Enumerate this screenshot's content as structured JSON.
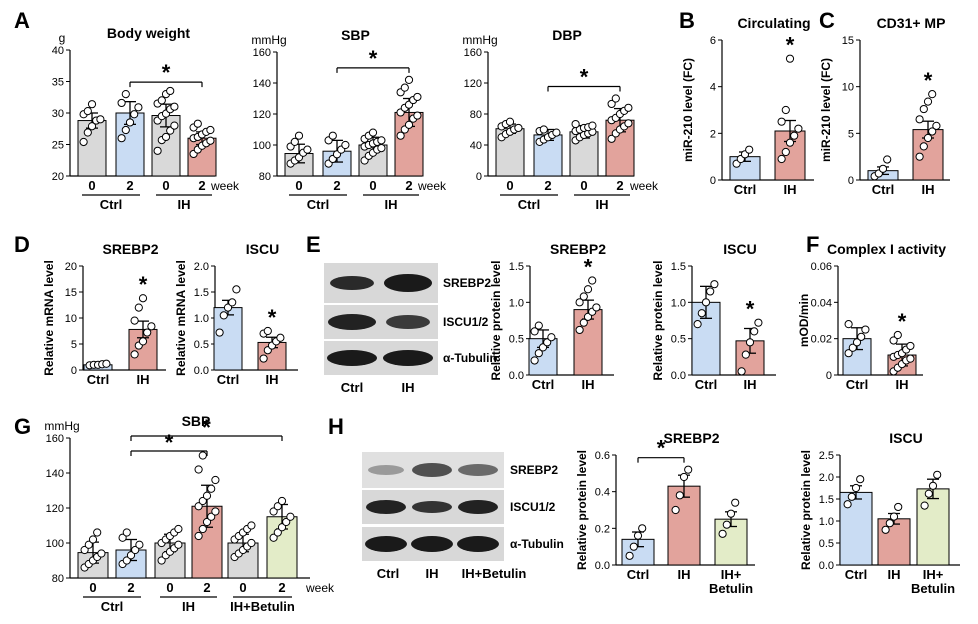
{
  "colors": {
    "gray": "#d9d9d9",
    "blue": "#c9dcf3",
    "red": "#e2a39c",
    "green": "#e3ecc8",
    "axis": "#000000"
  },
  "panels": {
    "A": "A",
    "B": "B",
    "C": "C",
    "D": "D",
    "E": "E",
    "F": "F",
    "G": "G",
    "H": "H"
  },
  "common": {
    "week": "week",
    "zero": "0",
    "two": "2",
    "ctrl": "Ctrl",
    "ih": "IH",
    "ihb": "IH+Betulin",
    "ihb1": "IH+",
    "ihb2": "Betulin",
    "star": "*",
    "g": "g",
    "mmhg": "mmHg"
  },
  "blot_labels": {
    "srebp2": "SREBP2",
    "iscu12": "ISCU1/2",
    "tubulin": "α-Tubulin"
  },
  "chart_data": [
    {
      "id": "A1",
      "type": "bar",
      "title": "Body weight",
      "unit": "g",
      "ylim": [
        20,
        40
      ],
      "yticks": [
        "20",
        "25",
        "30",
        "35",
        "40"
      ],
      "categories": [
        "Ctrl 0",
        "Ctrl 2",
        "IH 0",
        "IH 2"
      ],
      "values": [
        28.8,
        30,
        29.6,
        26
      ],
      "errors": [
        1.2,
        1.8,
        1.8,
        1
      ],
      "colors": [
        "gray",
        "blue",
        "gray",
        "red"
      ],
      "points": [
        [
          25.4,
          26.9,
          27.9,
          28.8,
          29,
          29.8,
          30.3,
          31.4
        ],
        [
          26,
          27.3,
          28.5,
          29.8,
          30.9,
          31.6,
          33
        ],
        [
          24,
          25.7,
          26.2,
          27.2,
          28,
          28.8,
          29.5,
          29.9,
          30.6,
          31,
          31.5,
          32,
          33,
          33.5
        ],
        [
          23.5,
          24.2,
          24.8,
          25.2,
          25.6,
          26,
          26.2,
          26.6,
          27,
          27.3,
          27.7,
          28.3
        ]
      ],
      "sig": [
        1,
        3
      ],
      "xlabel_groups": [
        "Ctrl",
        "IH"
      ],
      "xticks": [
        "0",
        "2",
        "0",
        "2"
      ],
      "xunit": "week"
    },
    {
      "id": "A2",
      "type": "bar",
      "title": "SBP",
      "unit": "mmHg",
      "ylim": [
        80,
        160
      ],
      "yticks": [
        "80",
        "100",
        "120",
        "140",
        "160"
      ],
      "categories": [
        "Ctrl 0",
        "Ctrl 2",
        "IH 0",
        "IH 2"
      ],
      "values": [
        94.5,
        96,
        100,
        121
      ],
      "errors": [
        6,
        7,
        5,
        9
      ],
      "colors": [
        "gray",
        "blue",
        "gray",
        "red"
      ],
      "points": [
        [
          88,
          90,
          92,
          95,
          97,
          99,
          102,
          106
        ],
        [
          88,
          91,
          94,
          97,
          100,
          103,
          106
        ],
        [
          90,
          93,
          95,
          97,
          98,
          99,
          100,
          101,
          102,
          103,
          104,
          106,
          108
        ],
        [
          106,
          110,
          113,
          117,
          119,
          121,
          124,
          126,
          129,
          131,
          134,
          137,
          142
        ]
      ],
      "sig": [
        1,
        3
      ],
      "xlabel_groups": [
        "Ctrl",
        "IH"
      ],
      "xticks": [
        "0",
        "2",
        "0",
        "2"
      ],
      "xunit": "week"
    },
    {
      "id": "A3",
      "type": "bar",
      "title": "DBP",
      "unit": "mmHg",
      "ylim": [
        0,
        160
      ],
      "yticks": [
        "0",
        "40",
        "80",
        "120",
        "160"
      ],
      "categories": [
        "Ctrl 0",
        "Ctrl 2",
        "IH 0",
        "IH 2"
      ],
      "values": [
        61,
        53,
        57,
        72
      ],
      "errors": [
        6,
        7,
        8,
        15
      ],
      "colors": [
        "gray",
        "blue",
        "gray",
        "red"
      ],
      "points": [
        [
          50,
          54,
          57,
          60,
          62,
          64,
          67,
          70
        ],
        [
          44,
          47,
          50,
          53,
          56,
          58,
          60
        ],
        [
          46,
          50,
          53,
          55,
          57,
          58,
          60,
          62,
          63,
          65,
          67
        ],
        [
          48,
          55,
          60,
          64,
          68,
          72,
          75,
          80,
          84,
          88,
          93,
          100
        ]
      ],
      "sig": [
        1,
        3
      ],
      "xlabel_groups": [
        "Ctrl",
        "IH"
      ],
      "xticks": [
        "0",
        "2",
        "0",
        "2"
      ],
      "xunit": "week"
    },
    {
      "id": "B",
      "type": "bar",
      "title": "Circulating",
      "ylabel": "miR-210 level (FC)",
      "ylim": [
        0,
        6
      ],
      "yticks": [
        "0",
        "2",
        "4",
        "6"
      ],
      "categories": [
        "Ctrl",
        "IH"
      ],
      "values": [
        1,
        2.1
      ],
      "errors": [
        0.2,
        0.45
      ],
      "colors": [
        "blue",
        "red"
      ],
      "points": [
        [
          0.7,
          0.9,
          1.1,
          1.3
        ],
        [
          0.9,
          1.2,
          1.6,
          1.9,
          2.2,
          2.5,
          3,
          5.2
        ]
      ],
      "star": 1
    },
    {
      "id": "C",
      "type": "bar",
      "title": "CD31+ MP",
      "ylabel": "miR-210 level (FC)",
      "ylim": [
        0,
        15
      ],
      "yticks": [
        "0",
        "5",
        "10",
        "15"
      ],
      "categories": [
        "Ctrl",
        "IH"
      ],
      "values": [
        1,
        5.4
      ],
      "errors": [
        0.4,
        0.9
      ],
      "colors": [
        "blue",
        "red"
      ],
      "points": [
        [
          0.4,
          0.7,
          1.2,
          2.2
        ],
        [
          2.5,
          3.6,
          4.5,
          5.2,
          5.8,
          6.5,
          7.6,
          8.4,
          9.2
        ]
      ],
      "star": 1
    },
    {
      "id": "D1",
      "type": "bar",
      "title": "SREBP2",
      "ylabel": "Relative mRNA level",
      "ylim": [
        0,
        20
      ],
      "yticks": [
        "0",
        "5",
        "10",
        "15",
        "20"
      ],
      "categories": [
        "Ctrl",
        "IH"
      ],
      "values": [
        1,
        7.8
      ],
      "errors": [
        0.1,
        1.6
      ],
      "colors": [
        "blue",
        "red"
      ],
      "points": [
        [
          0.9,
          1,
          1,
          1.1,
          1.2
        ],
        [
          3,
          4.7,
          5.5,
          7.2,
          8.4,
          9.5,
          12,
          13.8
        ]
      ],
      "star": 1
    },
    {
      "id": "D2",
      "type": "bar",
      "title": "ISCU",
      "ylabel": "Relative mRNA level",
      "ylim": [
        0,
        2
      ],
      "yticks": [
        "0.0",
        "0.5",
        "1.0",
        "1.5",
        "2.0"
      ],
      "categories": [
        "Ctrl",
        "IH"
      ],
      "values": [
        1.2,
        0.53
      ],
      "errors": [
        0.14,
        0.1
      ],
      "colors": [
        "blue",
        "red"
      ],
      "points": [
        [
          0.72,
          1.05,
          1.2,
          1.3,
          1.55
        ],
        [
          0.22,
          0.38,
          0.47,
          0.55,
          0.62,
          0.7,
          0.75
        ]
      ],
      "star": 1
    },
    {
      "id": "E1",
      "type": "bar",
      "title": "SREBP2",
      "ylabel": "Relative protein level",
      "ylim": [
        0,
        1.5
      ],
      "yticks": [
        "0.0",
        "0.5",
        "1.0",
        "1.5"
      ],
      "categories": [
        "Ctrl",
        "IH"
      ],
      "values": [
        0.5,
        0.9
      ],
      "errors": [
        0.12,
        0.13
      ],
      "colors": [
        "blue",
        "red"
      ],
      "points": [
        [
          0.2,
          0.3,
          0.38,
          0.45,
          0.52,
          0.6,
          0.68
        ],
        [
          0.62,
          0.72,
          0.8,
          0.87,
          0.93,
          1,
          1.08,
          1.18,
          1.3
        ]
      ],
      "star": 1
    },
    {
      "id": "E2",
      "type": "bar",
      "title": "ISCU",
      "ylabel": "Relative protein level",
      "ylim": [
        0,
        1.5
      ],
      "yticks": [
        "0.0",
        "0.5",
        "1.0",
        "1.5"
      ],
      "categories": [
        "Ctrl",
        "IH"
      ],
      "values": [
        1,
        0.47
      ],
      "errors": [
        0.22,
        0.17
      ],
      "colors": [
        "blue",
        "red"
      ],
      "points": [
        [
          0.7,
          0.85,
          1.0,
          1.15,
          1.25
        ],
        [
          0.05,
          0.28,
          0.45,
          0.6,
          0.72
        ]
      ],
      "star": 1
    },
    {
      "id": "F",
      "type": "bar",
      "title": "Complex I activity",
      "ylabel": "mOD/min",
      "ylim": [
        0,
        0.06
      ],
      "yticks": [
        "0",
        "0.02",
        "0.04",
        "0.06"
      ],
      "categories": [
        "Ctrl",
        "IH"
      ],
      "values": [
        0.02,
        0.011
      ],
      "errors": [
        0.006,
        0.006
      ],
      "colors": [
        "blue",
        "red"
      ],
      "points": [
        [
          0.012,
          0.015,
          0.018,
          0.021,
          0.025,
          0.028
        ],
        [
          0.002,
          0.004,
          0.006,
          0.008,
          0.009,
          0.01,
          0.011,
          0.012,
          0.014,
          0.016,
          0.019,
          0.022
        ]
      ],
      "star": 1
    },
    {
      "id": "G",
      "type": "bar",
      "title": "SBP",
      "unit": "mmHg",
      "ylim": [
        80,
        160
      ],
      "yticks": [
        "80",
        "100",
        "120",
        "140",
        "160"
      ],
      "categories": [
        "Ctrl 0",
        "Ctrl 2",
        "IH 0",
        "IH 2",
        "IH+Betulin 0",
        "IH+Betulin 2"
      ],
      "values": [
        94.5,
        96,
        100,
        121,
        100,
        115
      ],
      "errors": [
        6,
        6,
        5,
        12,
        5,
        7
      ],
      "colors": [
        "gray",
        "blue",
        "gray",
        "red",
        "gray",
        "green"
      ],
      "points": [
        [
          86,
          88,
          90,
          92,
          94,
          96,
          99,
          102,
          106
        ],
        [
          88,
          90,
          93,
          96,
          99,
          103,
          106
        ],
        [
          90,
          93,
          95,
          97,
          99,
          100,
          102,
          104,
          106,
          108
        ],
        [
          104,
          108,
          112,
          115,
          118,
          121,
          124,
          127,
          131,
          136,
          142,
          150
        ],
        [
          92,
          94,
          96,
          98,
          100,
          102,
          104,
          106,
          108,
          110
        ],
        [
          103,
          106,
          109,
          112,
          115,
          118,
          121,
          124
        ]
      ],
      "sig_lines": [
        [
          1,
          5
        ],
        [
          1,
          3
        ]
      ],
      "xlabel_groups": [
        "Ctrl",
        "IH",
        "IH+Betulin"
      ],
      "xticks": [
        "0",
        "2",
        "0",
        "2",
        "0",
        "2"
      ],
      "xunit": "week"
    },
    {
      "id": "H1",
      "type": "bar",
      "title": "SREBP2",
      "ylabel": "Relative protein level",
      "ylim": [
        0,
        0.6
      ],
      "yticks": [
        "0.0",
        "0.2",
        "0.4",
        "0.6"
      ],
      "categories": [
        "Ctrl",
        "IH",
        "IH+ Betulin"
      ],
      "values": [
        0.14,
        0.43,
        0.25
      ],
      "errors": [
        0.04,
        0.06,
        0.04
      ],
      "colors": [
        "blue",
        "red",
        "green"
      ],
      "points": [
        [
          0.05,
          0.1,
          0.16,
          0.2
        ],
        [
          0.3,
          0.38,
          0.48,
          0.52
        ],
        [
          0.17,
          0.22,
          0.28,
          0.34
        ]
      ],
      "sig": [
        0,
        1
      ]
    },
    {
      "id": "H2",
      "type": "bar",
      "title": "ISCU",
      "ylabel": "Relative protein level",
      "ylim": [
        0,
        2.5
      ],
      "yticks": [
        "0.0",
        "0.5",
        "1.0",
        "1.5",
        "2.0",
        "2.5"
      ],
      "categories": [
        "Ctrl",
        "IH",
        "IH+ Betulin"
      ],
      "values": [
        1.65,
        1.05,
        1.73
      ],
      "errors": [
        0.15,
        0.12,
        0.22
      ],
      "colors": [
        "blue",
        "red",
        "green"
      ],
      "points": [
        [
          1.38,
          1.55,
          1.75,
          1.95
        ],
        [
          0.8,
          0.95,
          1.1,
          1.32
        ],
        [
          1.35,
          1.62,
          1.8,
          2.05
        ]
      ]
    }
  ]
}
